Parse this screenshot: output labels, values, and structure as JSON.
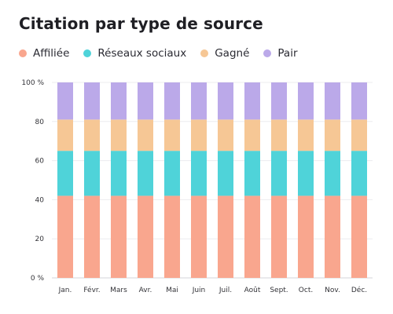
{
  "chart_data": {
    "type": "bar",
    "stacked": true,
    "title": "Citation par type de source",
    "categories": [
      "Jan.",
      "Févr.",
      "Mars",
      "Avr.",
      "Mai",
      "Juin",
      "Juil.",
      "Août",
      "Sept.",
      "Oct.",
      "Nov.",
      "Déc."
    ],
    "series": [
      {
        "name": "Affiliée",
        "color": "#f9a68e",
        "values": [
          42,
          42,
          42,
          42,
          42,
          42,
          42,
          42,
          42,
          42,
          42,
          42
        ]
      },
      {
        "name": "Réseaux sociaux",
        "color": "#4fd3d9",
        "values": [
          23,
          23,
          23,
          23,
          23,
          23,
          23,
          23,
          23,
          23,
          23,
          23
        ]
      },
      {
        "name": "Gagné",
        "color": "#f6c795",
        "values": [
          16,
          16,
          16,
          16,
          16,
          16,
          16,
          16,
          16,
          16,
          16,
          16
        ]
      },
      {
        "name": "Pair",
        "color": "#bba9e9",
        "values": [
          20,
          20,
          20,
          20,
          20,
          20,
          20,
          20,
          20,
          20,
          20,
          20
        ]
      }
    ],
    "ylim": [
      0,
      100
    ],
    "yticks": [
      0,
      20,
      40,
      60,
      80,
      100
    ],
    "ytick_labels": [
      "0 %",
      "20",
      "40",
      "60",
      "80",
      "100 %"
    ],
    "grid": true,
    "legend_position": "top-left"
  }
}
